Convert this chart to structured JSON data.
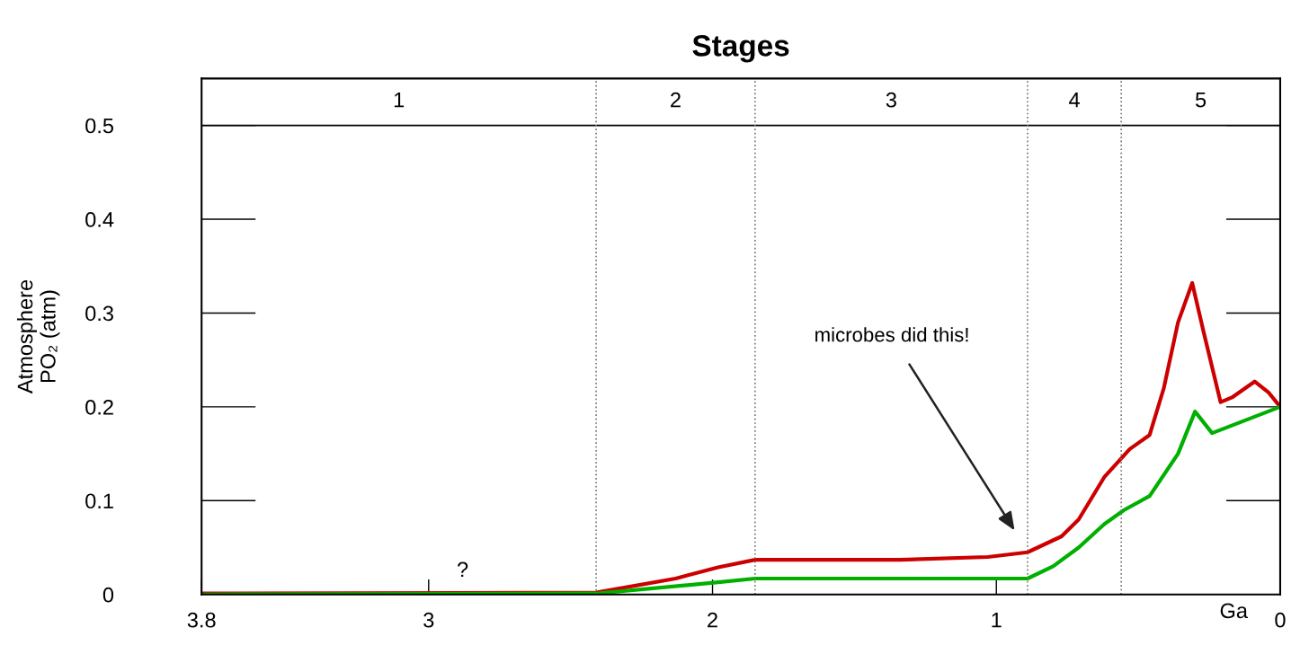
{
  "chart_data": {
    "type": "line",
    "title": "Stages",
    "xlabel": "Ga",
    "ylabel": "Atmosphere\nPO₂ (atm)",
    "xlim": [
      3.8,
      0
    ],
    "xticks": [
      {
        "value": 3.8,
        "label": "3.8"
      },
      3,
      2,
      1,
      0
    ],
    "ylim": [
      0,
      0.55
    ],
    "yticks": [
      0,
      0.1,
      0.2,
      0.3,
      0.4,
      0.5
    ],
    "grid": "y",
    "legend": false,
    "marker": "none",
    "line_style": "solid",
    "series": [
      {
        "color": "#cc0000",
        "x": [
          3.8,
          2.41,
          2.13,
          1.98,
          1.85,
          1.34,
          1.03,
          0.89,
          0.77,
          0.71,
          0.62,
          0.53,
          0.46,
          0.41,
          0.36,
          0.31,
          0.27,
          0.21,
          0.17,
          0.09,
          0.04,
          0
        ],
        "values": [
          0.001,
          0.002,
          0.017,
          0.029,
          0.037,
          0.037,
          0.04,
          0.045,
          0.062,
          0.08,
          0.125,
          0.155,
          0.17,
          0.22,
          0.29,
          0.332,
          0.28,
          0.205,
          0.21,
          0.227,
          0.215,
          0.2
        ]
      },
      {
        "color": "#00b000",
        "x": [
          3.8,
          2.41,
          1.98,
          1.85,
          0.89,
          0.8,
          0.71,
          0.62,
          0.55,
          0.46,
          0.36,
          0.3,
          0.24,
          0
        ],
        "values": [
          0,
          0.001,
          0.013,
          0.017,
          0.017,
          0.03,
          0.05,
          0.075,
          0.09,
          0.105,
          0.15,
          0.195,
          0.172,
          0.2
        ]
      }
    ],
    "ref_lines": [
      {
        "axis": "x",
        "value": 2.41,
        "color": "#777777",
        "line_style": "dotted"
      },
      {
        "axis": "x",
        "value": 1.85,
        "color": "#777777",
        "line_style": "dotted"
      },
      {
        "axis": "x",
        "value": 0.89,
        "color": "#777777",
        "line_style": "dotted"
      },
      {
        "axis": "x",
        "value": 0.56,
        "color": "#777777",
        "line_style": "dotted"
      }
    ],
    "annotations": [
      "1",
      "2",
      "3",
      "4",
      "5",
      "microbes did this!",
      "?"
    ]
  }
}
